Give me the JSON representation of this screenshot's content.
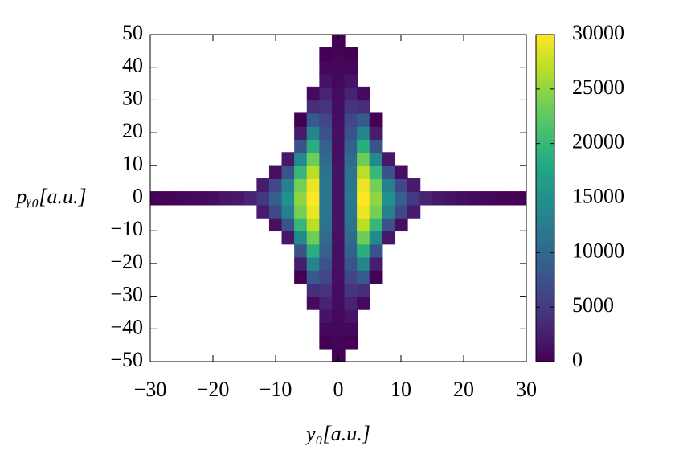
{
  "chart_data": {
    "type": "heatmap",
    "colormap": "viridis",
    "xlabel": "y₀[a.u.]",
    "ylabel": "pᵧ₀[a.u.]",
    "xlim": [
      -30,
      30
    ],
    "ylim": [
      -50,
      50
    ],
    "xticks": [
      {
        "value": -30,
        "label": "−30"
      },
      {
        "value": -20,
        "label": "−20"
      },
      {
        "value": -10,
        "label": "−10"
      },
      0,
      10,
      20,
      30
    ],
    "yticks": [
      {
        "value": -50,
        "label": "−50"
      },
      {
        "value": -40,
        "label": "−40"
      },
      {
        "value": -30,
        "label": "−30"
      },
      {
        "value": -20,
        "label": "−20"
      },
      {
        "value": -10,
        "label": "−10"
      },
      0,
      10,
      20,
      30,
      40,
      50
    ],
    "zlim": [
      0,
      30000
    ],
    "zticks": [
      0,
      5000,
      10000,
      15000,
      20000,
      25000,
      30000
    ],
    "x": [
      -30,
      -28,
      -26,
      -24,
      -22,
      -20,
      -18,
      -16,
      -14,
      -12,
      -10,
      -8,
      -6,
      -4,
      -2,
      0,
      2,
      4,
      6,
      8,
      10,
      12,
      14,
      16,
      18,
      20,
      22,
      24,
      26,
      28,
      30
    ],
    "y": [
      -48,
      -44,
      -40,
      -36,
      -32,
      -28,
      -24,
      -20,
      -16,
      -12,
      -8,
      -4,
      0,
      4,
      8,
      12,
      16,
      20,
      24,
      28,
      32,
      36,
      40,
      44,
      48
    ],
    "z": [
      [
        null,
        null,
        null,
        null,
        null,
        null,
        null,
        null,
        null,
        null,
        null,
        null,
        null,
        null,
        null,
        100,
        null,
        null,
        null,
        null,
        null,
        null,
        null,
        null,
        null,
        null,
        null,
        null,
        null,
        null,
        null
      ],
      [
        null,
        null,
        null,
        null,
        null,
        null,
        null,
        null,
        null,
        null,
        null,
        null,
        null,
        null,
        0,
        300,
        0,
        null,
        null,
        null,
        null,
        null,
        null,
        null,
        null,
        null,
        null,
        null,
        null,
        null,
        null
      ],
      [
        null,
        null,
        null,
        null,
        null,
        null,
        null,
        null,
        null,
        null,
        null,
        null,
        null,
        null,
        500,
        500,
        500,
        null,
        null,
        null,
        null,
        null,
        null,
        null,
        null,
        null,
        null,
        null,
        null,
        null,
        null
      ],
      [
        null,
        null,
        null,
        null,
        null,
        null,
        null,
        null,
        null,
        null,
        null,
        null,
        null,
        null,
        1600,
        700,
        1600,
        null,
        null,
        null,
        null,
        null,
        null,
        null,
        null,
        null,
        null,
        null,
        null,
        null,
        null
      ],
      [
        null,
        null,
        null,
        null,
        null,
        null,
        null,
        null,
        null,
        null,
        null,
        null,
        null,
        800,
        2900,
        900,
        2900,
        800,
        null,
        null,
        null,
        null,
        null,
        null,
        null,
        null,
        null,
        null,
        null,
        null,
        null
      ],
      [
        null,
        null,
        null,
        null,
        null,
        null,
        null,
        null,
        null,
        null,
        null,
        null,
        null,
        3900,
        4500,
        1000,
        4500,
        3900,
        null,
        null,
        null,
        null,
        null,
        null,
        null,
        null,
        null,
        null,
        null,
        null,
        null
      ],
      [
        null,
        null,
        null,
        null,
        null,
        null,
        null,
        null,
        null,
        null,
        null,
        null,
        0,
        8400,
        6200,
        1100,
        6200,
        8400,
        0,
        null,
        null,
        null,
        null,
        null,
        null,
        null,
        null,
        null,
        null,
        null,
        null
      ],
      [
        null,
        null,
        null,
        null,
        null,
        null,
        null,
        null,
        null,
        null,
        null,
        null,
        2300,
        13600,
        7700,
        1300,
        7700,
        13600,
        2300,
        null,
        null,
        null,
        null,
        null,
        null,
        null,
        null,
        null,
        null,
        null,
        null
      ],
      [
        null,
        null,
        null,
        null,
        null,
        null,
        null,
        null,
        null,
        null,
        null,
        null,
        7700,
        18800,
        9200,
        1300,
        9200,
        18800,
        7700,
        null,
        null,
        null,
        null,
        null,
        null,
        null,
        null,
        null,
        null,
        null,
        null
      ],
      [
        null,
        null,
        null,
        null,
        null,
        null,
        null,
        null,
        null,
        null,
        null,
        1900,
        14100,
        23300,
        10400,
        1400,
        10400,
        23300,
        14100,
        1900,
        null,
        null,
        null,
        null,
        null,
        null,
        null,
        null,
        null,
        null,
        null
      ],
      [
        null,
        null,
        null,
        null,
        null,
        null,
        null,
        null,
        null,
        null,
        1200,
        7700,
        19800,
        26900,
        11300,
        1500,
        11300,
        26900,
        19800,
        7700,
        1200,
        null,
        null,
        null,
        null,
        null,
        null,
        null,
        null,
        null,
        null
      ],
      [
        null,
        null,
        null,
        null,
        null,
        null,
        null,
        null,
        null,
        2300,
        6400,
        12900,
        23600,
        29200,
        11800,
        1500,
        11800,
        29200,
        23600,
        12900,
        6400,
        2300,
        null,
        null,
        null,
        null,
        null,
        null,
        null,
        null,
        null
      ],
      [
        100,
        200,
        300,
        500,
        700,
        1000,
        1500,
        2000,
        3000,
        5000,
        9000,
        15000,
        25000,
        30000,
        12000,
        1500,
        12000,
        30000,
        25000,
        15000,
        9000,
        5000,
        3000,
        2000,
        1500,
        1000,
        700,
        500,
        300,
        200,
        100
      ],
      [
        null,
        null,
        null,
        null,
        null,
        null,
        null,
        null,
        null,
        2300,
        6400,
        12900,
        23600,
        29200,
        11800,
        1500,
        11800,
        29200,
        23600,
        12900,
        6400,
        2300,
        null,
        null,
        null,
        null,
        null,
        null,
        null,
        null,
        null
      ],
      [
        null,
        null,
        null,
        null,
        null,
        null,
        null,
        null,
        null,
        null,
        1200,
        7700,
        19800,
        26900,
        11300,
        1500,
        11300,
        26900,
        19800,
        7700,
        1200,
        null,
        null,
        null,
        null,
        null,
        null,
        null,
        null,
        null,
        null
      ],
      [
        null,
        null,
        null,
        null,
        null,
        null,
        null,
        null,
        null,
        null,
        null,
        1900,
        14100,
        23300,
        10400,
        1400,
        10400,
        23300,
        14100,
        1900,
        null,
        null,
        null,
        null,
        null,
        null,
        null,
        null,
        null,
        null,
        null
      ],
      [
        null,
        null,
        null,
        null,
        null,
        null,
        null,
        null,
        null,
        null,
        null,
        null,
        7700,
        18800,
        9200,
        1300,
        9200,
        18800,
        7700,
        null,
        null,
        null,
        null,
        null,
        null,
        null,
        null,
        null,
        null,
        null,
        null
      ],
      [
        null,
        null,
        null,
        null,
        null,
        null,
        null,
        null,
        null,
        null,
        null,
        null,
        2300,
        13600,
        7700,
        1300,
        7700,
        13600,
        2300,
        null,
        null,
        null,
        null,
        null,
        null,
        null,
        null,
        null,
        null,
        null,
        null
      ],
      [
        null,
        null,
        null,
        null,
        null,
        null,
        null,
        null,
        null,
        null,
        null,
        null,
        0,
        8400,
        6200,
        1100,
        6200,
        8400,
        0,
        null,
        null,
        null,
        null,
        null,
        null,
        null,
        null,
        null,
        null,
        null,
        null
      ],
      [
        null,
        null,
        null,
        null,
        null,
        null,
        null,
        null,
        null,
        null,
        null,
        null,
        null,
        3900,
        4500,
        1000,
        4500,
        3900,
        null,
        null,
        null,
        null,
        null,
        null,
        null,
        null,
        null,
        null,
        null,
        null,
        null
      ],
      [
        null,
        null,
        null,
        null,
        null,
        null,
        null,
        null,
        null,
        null,
        null,
        null,
        null,
        800,
        2900,
        900,
        2900,
        800,
        null,
        null,
        null,
        null,
        null,
        null,
        null,
        null,
        null,
        null,
        null,
        null,
        null
      ],
      [
        null,
        null,
        null,
        null,
        null,
        null,
        null,
        null,
        null,
        null,
        null,
        null,
        null,
        null,
        1600,
        700,
        1600,
        null,
        null,
        null,
        null,
        null,
        null,
        null,
        null,
        null,
        null,
        null,
        null,
        null,
        null
      ],
      [
        null,
        null,
        null,
        null,
        null,
        null,
        null,
        null,
        null,
        null,
        null,
        null,
        null,
        null,
        500,
        500,
        500,
        null,
        null,
        null,
        null,
        null,
        null,
        null,
        null,
        null,
        null,
        null,
        null,
        null,
        null
      ],
      [
        null,
        null,
        null,
        null,
        null,
        null,
        null,
        null,
        null,
        null,
        null,
        null,
        null,
        null,
        0,
        300,
        0,
        null,
        null,
        null,
        null,
        null,
        null,
        null,
        null,
        null,
        null,
        null,
        null,
        null,
        null
      ],
      [
        null,
        null,
        null,
        null,
        null,
        null,
        null,
        null,
        null,
        null,
        null,
        null,
        null,
        null,
        null,
        100,
        null,
        null,
        null,
        null,
        null,
        null,
        null,
        null,
        null,
        null,
        null,
        null,
        null,
        null,
        null
      ]
    ]
  }
}
